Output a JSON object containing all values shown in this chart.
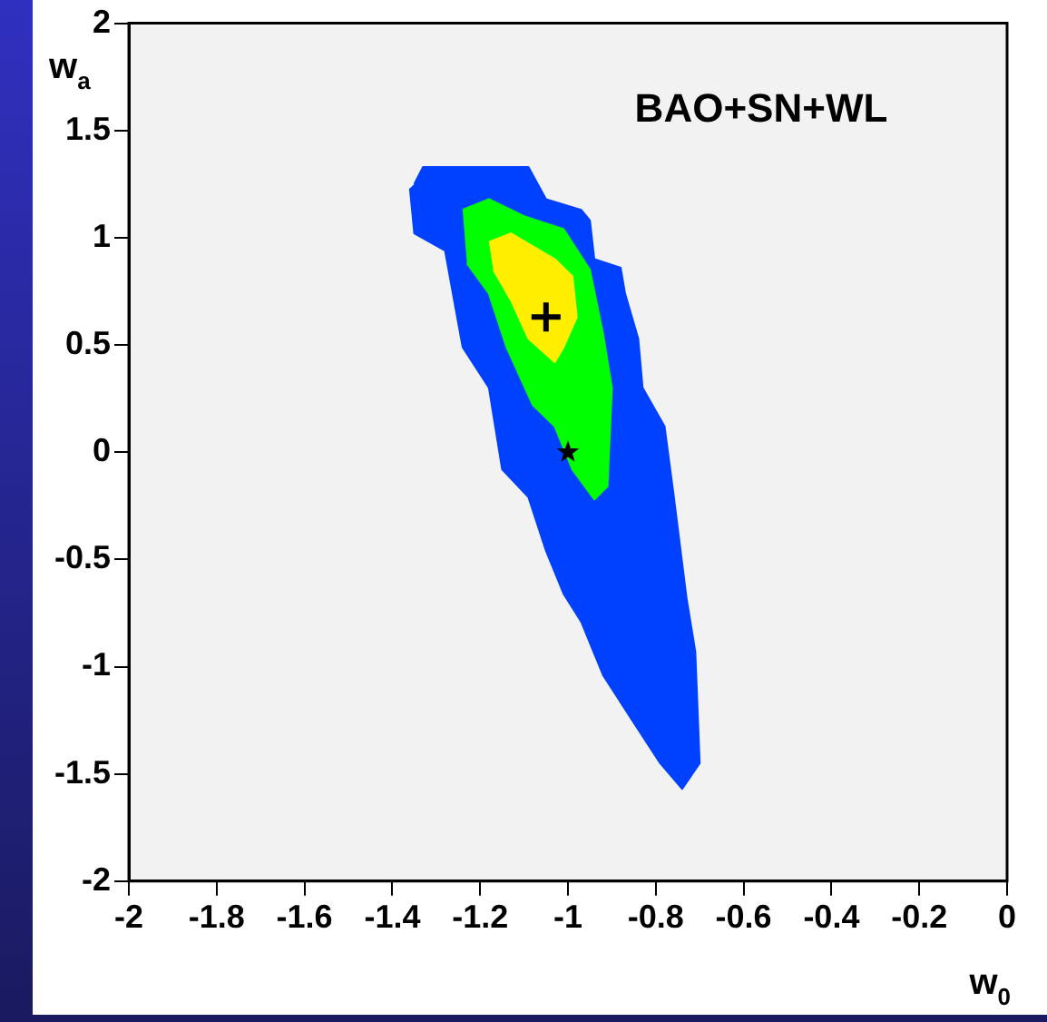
{
  "chart_data": {
    "type": "area",
    "title": "BAO+SN+WL",
    "xlabel": "w$_{0}$",
    "ylabel": "w$_{a}$",
    "xlim": [
      -2,
      0
    ],
    "ylim": [
      -2,
      2
    ],
    "xticks": [
      -2,
      -1.8,
      -1.6,
      -1.4,
      -1.2,
      -1,
      -0.8,
      -0.6,
      -0.4,
      -0.2,
      0
    ],
    "yticks": [
      -2,
      -1.5,
      -1,
      -0.5,
      0,
      0.5,
      1,
      1.5,
      2
    ],
    "grid": false,
    "legend": false,
    "series": [
      {
        "color": "#0040ff",
        "x": [
          -1.35,
          -1.33,
          -1.09,
          -1.05,
          -0.97,
          -0.95,
          -0.94,
          -0.88,
          -0.87,
          -0.84,
          -0.83,
          -0.78,
          -0.76,
          -0.73,
          -0.71,
          -0.7,
          -0.74,
          -0.79,
          -0.86,
          -0.92,
          -0.97,
          -1.01,
          -1.05,
          -1.09,
          -1.15,
          -1.18,
          -1.24,
          -1.28,
          -1.35,
          -1.36
        ],
        "values": [
          1.25,
          1.33,
          1.33,
          1.18,
          1.13,
          1.08,
          0.9,
          0.86,
          0.74,
          0.53,
          0.3,
          0.12,
          -0.19,
          -0.68,
          -0.93,
          -1.45,
          -1.57,
          -1.45,
          -1.23,
          -1.04,
          -0.79,
          -0.66,
          -0.46,
          -0.21,
          -0.08,
          0.3,
          0.49,
          0.94,
          1.02,
          1.23
        ]
      },
      {
        "color": "#00ff00",
        "x": [
          -1.24,
          -1.18,
          -1.1,
          -1.01,
          -0.95,
          -0.92,
          -0.9,
          -0.91,
          -0.94,
          -0.99,
          -1.03,
          -1.08,
          -1.14,
          -1.18,
          -1.23
        ],
        "values": [
          1.13,
          1.18,
          1.1,
          1.04,
          0.85,
          0.55,
          0.3,
          -0.16,
          -0.22,
          -0.08,
          0.12,
          0.22,
          0.49,
          0.74,
          0.88
        ]
      },
      {
        "color": "#ffee00",
        "x": [
          -1.18,
          -1.13,
          -1.03,
          -0.99,
          -0.98,
          -1.01,
          -1.03,
          -1.09,
          -1.13,
          -1.17
        ],
        "values": [
          0.98,
          1.02,
          0.9,
          0.82,
          0.63,
          0.49,
          0.42,
          0.53,
          0.71,
          0.85
        ]
      },
      {
        "type": "scatter",
        "marker": "cross",
        "color": "#000000",
        "x": [
          -1.05
        ],
        "values": [
          0.63
        ]
      },
      {
        "type": "scatter",
        "marker": "star",
        "color": "#000000",
        "x": [
          -1
        ],
        "values": [
          0
        ]
      }
    ]
  }
}
